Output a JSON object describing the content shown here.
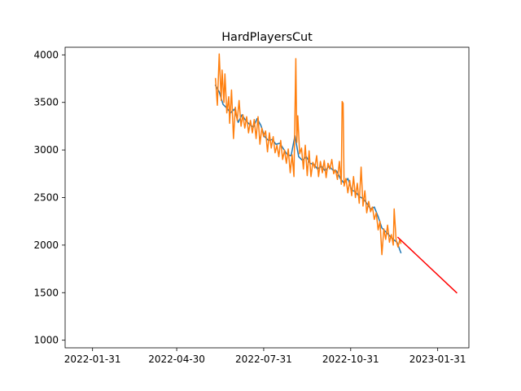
{
  "chart_data": {
    "type": "line",
    "title": "HardPlayersCut",
    "xlabel": "",
    "ylabel": "",
    "grid": false,
    "legend": "none",
    "x_axis": {
      "type": "date",
      "min": "2022-01-02",
      "max": "2023-03-05",
      "tick_labels": [
        "2022-01-31",
        "2022-04-30",
        "2022-07-31",
        "2022-10-31",
        "2023-01-31"
      ]
    },
    "y_axis": {
      "min": 920,
      "max": 4080,
      "tick_labels": [
        "1000",
        "1500",
        "2000",
        "2500",
        "3000",
        "3500",
        "4000"
      ]
    },
    "series": [
      {
        "color": "#1f77b4",
        "points": [
          [
            "2022-06-10",
            3680
          ],
          [
            "2022-06-14",
            3610
          ],
          [
            "2022-06-18",
            3480
          ],
          [
            "2022-06-22",
            3440
          ],
          [
            "2022-06-26",
            3390
          ],
          [
            "2022-06-30",
            3430
          ],
          [
            "2022-07-04",
            3290
          ],
          [
            "2022-07-08",
            3370
          ],
          [
            "2022-07-12",
            3310
          ],
          [
            "2022-07-16",
            3270
          ],
          [
            "2022-07-20",
            3240
          ],
          [
            "2022-07-24",
            3330
          ],
          [
            "2022-07-28",
            3260
          ],
          [
            "2022-08-01",
            3140
          ],
          [
            "2022-08-05",
            3100
          ],
          [
            "2022-08-09",
            3110
          ],
          [
            "2022-08-13",
            3060
          ],
          [
            "2022-08-17",
            3070
          ],
          [
            "2022-08-21",
            3010
          ],
          [
            "2022-08-25",
            2950
          ],
          [
            "2022-08-29",
            2940
          ],
          [
            "2022-09-02",
            3150
          ],
          [
            "2022-09-06",
            2930
          ],
          [
            "2022-09-10",
            2890
          ],
          [
            "2022-09-14",
            2930
          ],
          [
            "2022-09-18",
            2860
          ],
          [
            "2022-09-22",
            2850
          ],
          [
            "2022-09-26",
            2800
          ],
          [
            "2022-09-30",
            2830
          ],
          [
            "2022-10-04",
            2780
          ],
          [
            "2022-10-08",
            2830
          ],
          [
            "2022-10-12",
            2790
          ],
          [
            "2022-10-16",
            2780
          ],
          [
            "2022-10-20",
            2700
          ],
          [
            "2022-10-24",
            2650
          ],
          [
            "2022-10-28",
            2700
          ],
          [
            "2022-11-01",
            2580
          ],
          [
            "2022-11-05",
            2560
          ],
          [
            "2022-11-09",
            2510
          ],
          [
            "2022-11-13",
            2490
          ],
          [
            "2022-11-17",
            2440
          ],
          [
            "2022-11-21",
            2380
          ],
          [
            "2022-11-25",
            2400
          ],
          [
            "2022-11-29",
            2300
          ],
          [
            "2022-12-03",
            2180
          ],
          [
            "2022-12-07",
            2140
          ],
          [
            "2022-12-11",
            2100
          ],
          [
            "2022-12-15",
            2060
          ],
          [
            "2022-12-19",
            2030
          ],
          [
            "2022-12-23",
            1920
          ]
        ]
      },
      {
        "color": "#ff7f0e",
        "points": [
          [
            "2022-06-10",
            3750
          ],
          [
            "2022-06-12",
            3470
          ],
          [
            "2022-06-14",
            4010
          ],
          [
            "2022-06-16",
            3520
          ],
          [
            "2022-06-17",
            3840
          ],
          [
            "2022-06-19",
            3500
          ],
          [
            "2022-06-20",
            3800
          ],
          [
            "2022-06-22",
            3390
          ],
          [
            "2022-06-24",
            3560
          ],
          [
            "2022-06-25",
            3280
          ],
          [
            "2022-06-27",
            3630
          ],
          [
            "2022-06-29",
            3120
          ],
          [
            "2022-07-01",
            3450
          ],
          [
            "2022-07-03",
            3310
          ],
          [
            "2022-07-05",
            3520
          ],
          [
            "2022-07-07",
            3250
          ],
          [
            "2022-07-09",
            3370
          ],
          [
            "2022-07-11",
            3230
          ],
          [
            "2022-07-13",
            3350
          ],
          [
            "2022-07-15",
            3180
          ],
          [
            "2022-07-17",
            3310
          ],
          [
            "2022-07-19",
            3180
          ],
          [
            "2022-07-21",
            3320
          ],
          [
            "2022-07-23",
            3120
          ],
          [
            "2022-07-25",
            3350
          ],
          [
            "2022-07-27",
            3060
          ],
          [
            "2022-07-29",
            3230
          ],
          [
            "2022-07-31",
            3140
          ],
          [
            "2022-08-02",
            3200
          ],
          [
            "2022-08-04",
            2980
          ],
          [
            "2022-08-06",
            3180
          ],
          [
            "2022-08-08",
            3020
          ],
          [
            "2022-08-10",
            3140
          ],
          [
            "2022-08-12",
            2970
          ],
          [
            "2022-08-14",
            3050
          ],
          [
            "2022-08-16",
            2930
          ],
          [
            "2022-08-18",
            3100
          ],
          [
            "2022-08-20",
            2900
          ],
          [
            "2022-08-22",
            3000
          ],
          [
            "2022-08-24",
            2860
          ],
          [
            "2022-08-26",
            3010
          ],
          [
            "2022-08-28",
            2760
          ],
          [
            "2022-08-30",
            2950
          ],
          [
            "2022-09-01",
            2720
          ],
          [
            "2022-09-03",
            3960
          ],
          [
            "2022-09-04",
            3080
          ],
          [
            "2022-09-05",
            3360
          ],
          [
            "2022-09-07",
            2960
          ],
          [
            "2022-09-09",
            3020
          ],
          [
            "2022-09-11",
            2800
          ],
          [
            "2022-09-13",
            3050
          ],
          [
            "2022-09-15",
            2730
          ],
          [
            "2022-09-17",
            2990
          ],
          [
            "2022-09-19",
            2720
          ],
          [
            "2022-09-21",
            2870
          ],
          [
            "2022-09-23",
            2810
          ],
          [
            "2022-09-25",
            2940
          ],
          [
            "2022-09-27",
            2720
          ],
          [
            "2022-09-29",
            2880
          ],
          [
            "2022-10-01",
            2760
          ],
          [
            "2022-10-03",
            2890
          ],
          [
            "2022-10-05",
            2710
          ],
          [
            "2022-10-07",
            2860
          ],
          [
            "2022-10-09",
            2800
          ],
          [
            "2022-10-11",
            2900
          ],
          [
            "2022-10-13",
            2750
          ],
          [
            "2022-10-15",
            2790
          ],
          [
            "2022-10-17",
            2690
          ],
          [
            "2022-10-19",
            2880
          ],
          [
            "2022-10-21",
            2640
          ],
          [
            "2022-10-22",
            3510
          ],
          [
            "2022-10-23",
            3490
          ],
          [
            "2022-10-24",
            2620
          ],
          [
            "2022-10-26",
            2700
          ],
          [
            "2022-10-28",
            2550
          ],
          [
            "2022-10-30",
            2680
          ],
          [
            "2022-11-01",
            2520
          ],
          [
            "2022-11-03",
            2720
          ],
          [
            "2022-11-05",
            2500
          ],
          [
            "2022-11-07",
            2650
          ],
          [
            "2022-11-09",
            2440
          ],
          [
            "2022-11-11",
            2820
          ],
          [
            "2022-11-13",
            2410
          ],
          [
            "2022-11-15",
            2570
          ],
          [
            "2022-11-17",
            2340
          ],
          [
            "2022-11-19",
            2460
          ],
          [
            "2022-11-21",
            2350
          ],
          [
            "2022-11-23",
            2400
          ],
          [
            "2022-11-25",
            2270
          ],
          [
            "2022-11-27",
            2340
          ],
          [
            "2022-11-29",
            2160
          ],
          [
            "2022-12-01",
            2250
          ],
          [
            "2022-12-03",
            1900
          ],
          [
            "2022-12-05",
            2170
          ],
          [
            "2022-12-07",
            2060
          ],
          [
            "2022-12-09",
            2210
          ],
          [
            "2022-12-11",
            2030
          ],
          [
            "2022-12-13",
            2110
          ],
          [
            "2022-12-15",
            2000
          ],
          [
            "2022-12-16",
            2380
          ],
          [
            "2022-12-18",
            2050
          ],
          [
            "2022-12-20",
            1980
          ],
          [
            "2022-12-22",
            2060
          ],
          [
            "2022-12-23",
            2020
          ]
        ]
      },
      {
        "color": "#ff0000",
        "points": [
          [
            "2022-12-20",
            2080
          ],
          [
            "2023-02-20",
            1500
          ]
        ]
      }
    ]
  }
}
